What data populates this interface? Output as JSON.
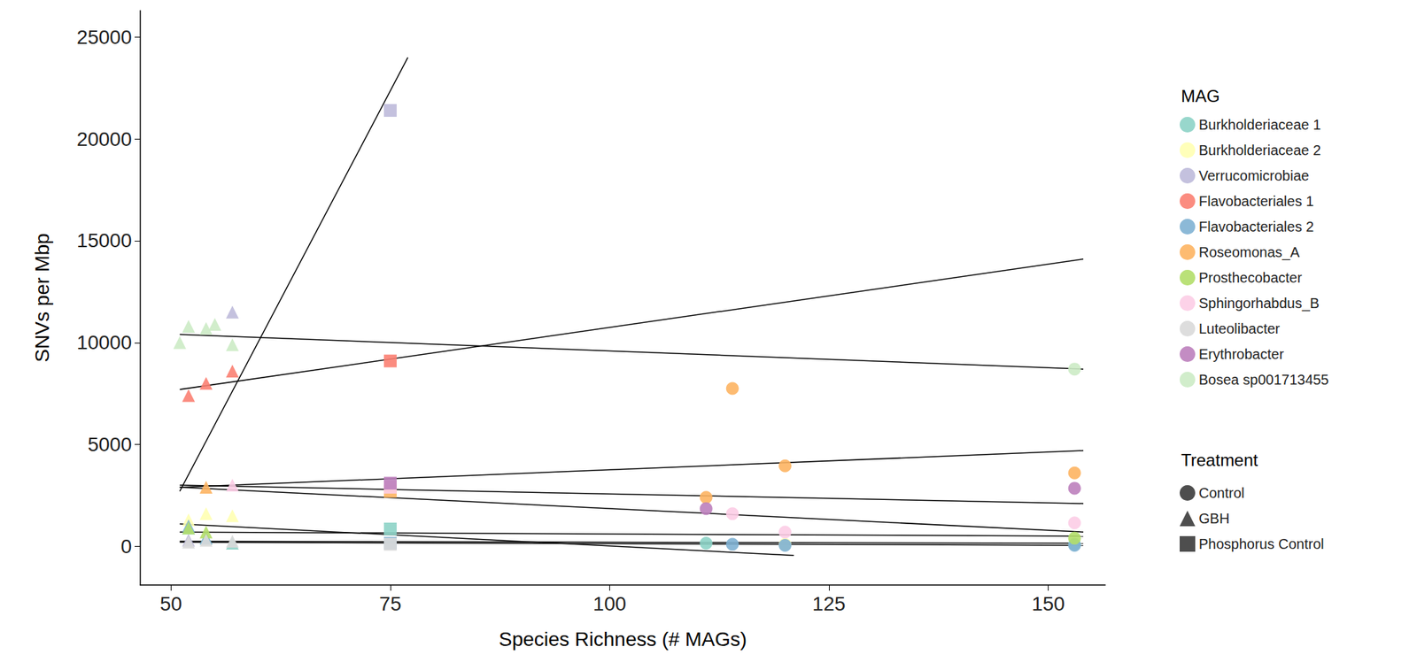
{
  "chart_data": {
    "type": "scatter",
    "x_label": "Species Richness (# MAGs)",
    "y_label": "SNVs per Mbp",
    "legend_title": "MAG",
    "marker_legend_title": "Treatment",
    "xlim": [
      46.5,
      156.5
    ],
    "xticks": [
      50,
      75,
      100,
      125,
      150
    ],
    "ylim": [
      -1900,
      26300
    ],
    "yticks": [
      0,
      5000,
      10000,
      15000,
      20000,
      25000
    ],
    "grid": false,
    "legend": "right",
    "markers": [
      {
        "name": "Control",
        "marker": "circle"
      },
      {
        "name": "GBH",
        "marker": "triangle"
      },
      {
        "name": "Phosphorus Control",
        "marker": "rect"
      }
    ],
    "fit_color": "#000000",
    "series": [
      {
        "name": "Burkholderiaceae 1",
        "color": "#8DD3C7",
        "x": [
          52,
          54,
          57,
          75,
          111,
          153
        ],
        "values": [
          900,
          400,
          150,
          850,
          150,
          100
        ],
        "treatment": [
          "GBH",
          "GBH",
          "GBH",
          "Phosphorus Control",
          "Control",
          "Control"
        ],
        "fit": {
          "x": [
            51,
            154
          ],
          "values": [
            250,
            150
          ]
        }
      },
      {
        "name": "Burkholderiaceae 2",
        "color": "#FFFFB3",
        "x": [
          52,
          54,
          57,
          120
        ],
        "values": [
          1300,
          1600,
          1500,
          100
        ],
        "treatment": [
          "GBH",
          "GBH",
          "GBH",
          "Control"
        ],
        "fit": {
          "x": [
            51,
            121
          ],
          "values": [
            1100,
            -450
          ]
        }
      },
      {
        "name": "Verrucomicrobiae",
        "color": "#BEBADA",
        "x": [
          52,
          57,
          75
        ],
        "values": [
          300,
          11500,
          21400
        ],
        "treatment": [
          "GBH",
          "GBH",
          "Phosphorus Control"
        ],
        "fit": {
          "x": [
            51,
            77
          ],
          "values": [
            2700,
            24000
          ]
        }
      },
      {
        "name": "Flavobacteriales 1",
        "color": "#FB8072",
        "x": [
          52,
          54,
          57,
          75
        ],
        "values": [
          7400,
          8000,
          8600,
          9100
        ],
        "treatment": [
          "GBH",
          "GBH",
          "GBH",
          "Phosphorus Control"
        ],
        "fit": {
          "x": [
            51,
            154
          ],
          "values": [
            7700,
            14100
          ]
        }
      },
      {
        "name": "Flavobacteriales 2",
        "color": "#80B1D3",
        "x": [
          52,
          54,
          75,
          114,
          120,
          153
        ],
        "values": [
          1000,
          400,
          150,
          100,
          50,
          50
        ],
        "treatment": [
          "GBH",
          "GBH",
          "Phosphorus Control",
          "Control",
          "Control",
          "Control"
        ],
        "fit": {
          "x": [
            51,
            154
          ],
          "values": [
            200,
            50
          ]
        }
      },
      {
        "name": "Roseomonas_A",
        "color": "#FDB462",
        "x": [
          54,
          75,
          111,
          114,
          120,
          153
        ],
        "values": [
          2900,
          2700,
          2400,
          7750,
          3950,
          3600
        ],
        "treatment": [
          "GBH",
          "Phosphorus Control",
          "Control",
          "Control",
          "Control",
          "Control"
        ],
        "fit": {
          "x": [
            51,
            154
          ],
          "values": [
            2900,
            4700
          ]
        }
      },
      {
        "name": "Prosthecobacter",
        "color": "#B3DE69",
        "x": [
          52,
          54,
          153
        ],
        "values": [
          900,
          700,
          400
        ],
        "treatment": [
          "GBH",
          "GBH",
          "Control"
        ],
        "fit": {
          "x": [
            51,
            154
          ],
          "values": [
            700,
            500
          ]
        }
      },
      {
        "name": "Sphingorhabdus_B",
        "color": "#FCCDE5",
        "x": [
          57,
          75,
          114,
          120,
          153
        ],
        "values": [
          3000,
          2900,
          1600,
          700,
          1150
        ],
        "treatment": [
          "GBH",
          "Phosphorus Control",
          "Control",
          "Control",
          "Control"
        ],
        "fit": {
          "x": [
            51,
            154
          ],
          "values": [
            2900,
            700
          ]
        }
      },
      {
        "name": "Luteolibacter",
        "color": "#D9D9D9",
        "x": [
          52,
          54,
          57,
          75
        ],
        "values": [
          200,
          300,
          250,
          100
        ],
        "treatment": [
          "GBH",
          "GBH",
          "GBH",
          "Phosphorus Control"
        ]
      },
      {
        "name": "Erythrobacter",
        "color": "#BC80BD",
        "x": [
          75,
          111,
          153
        ],
        "values": [
          3100,
          1850,
          2850
        ],
        "treatment": [
          "Phosphorus Control",
          "Control",
          "Control"
        ],
        "fit": {
          "x": [
            51,
            154
          ],
          "values": [
            3000,
            2100
          ]
        }
      },
      {
        "name": "Bosea sp001713455",
        "color": "#CCEBC5",
        "x": [
          51,
          52,
          54,
          55,
          57,
          153
        ],
        "values": [
          10000,
          10800,
          10700,
          10900,
          9900,
          8700
        ],
        "treatment": [
          "GBH",
          "GBH",
          "GBH",
          "GBH",
          "GBH",
          "Control"
        ],
        "fit": {
          "x": [
            51,
            154
          ],
          "values": [
            10400,
            8700
          ]
        }
      }
    ]
  }
}
